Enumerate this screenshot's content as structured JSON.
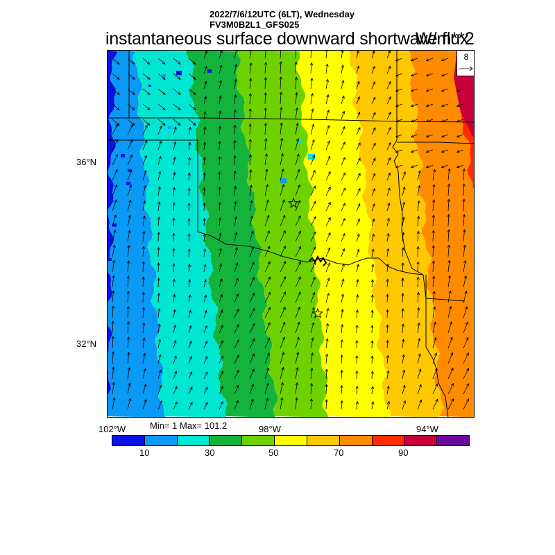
{
  "header": {
    "datetime": "2022/7/6/12UTC (6LT), Wednesday",
    "model": "FV3M0B2L1_GFS025",
    "title": "instantaneous surface downward shortwave flux",
    "units": "W/m**2"
  },
  "map": {
    "reference_vector_value": "8",
    "lat_labels": [
      "36°N",
      "32°N"
    ],
    "lon_labels": [
      "102°W",
      "98°W",
      "94°W"
    ],
    "station_markers": 2,
    "wind_vector_direction": "toward north-northeast"
  },
  "stats": {
    "text": "Min= 1 Max= 101.2",
    "min": 1,
    "max": 101.2
  },
  "colorbar": {
    "labels": [
      "10",
      "30",
      "50",
      "70",
      "90"
    ],
    "colors": [
      "#0a12e6",
      "#0a99f5",
      "#00e6d2",
      "#14b43c",
      "#6ed200",
      "#ffff00",
      "#ffc800",
      "#ff8c00",
      "#ff2a00",
      "#c8003c",
      "#6a0a9c"
    ]
  }
}
